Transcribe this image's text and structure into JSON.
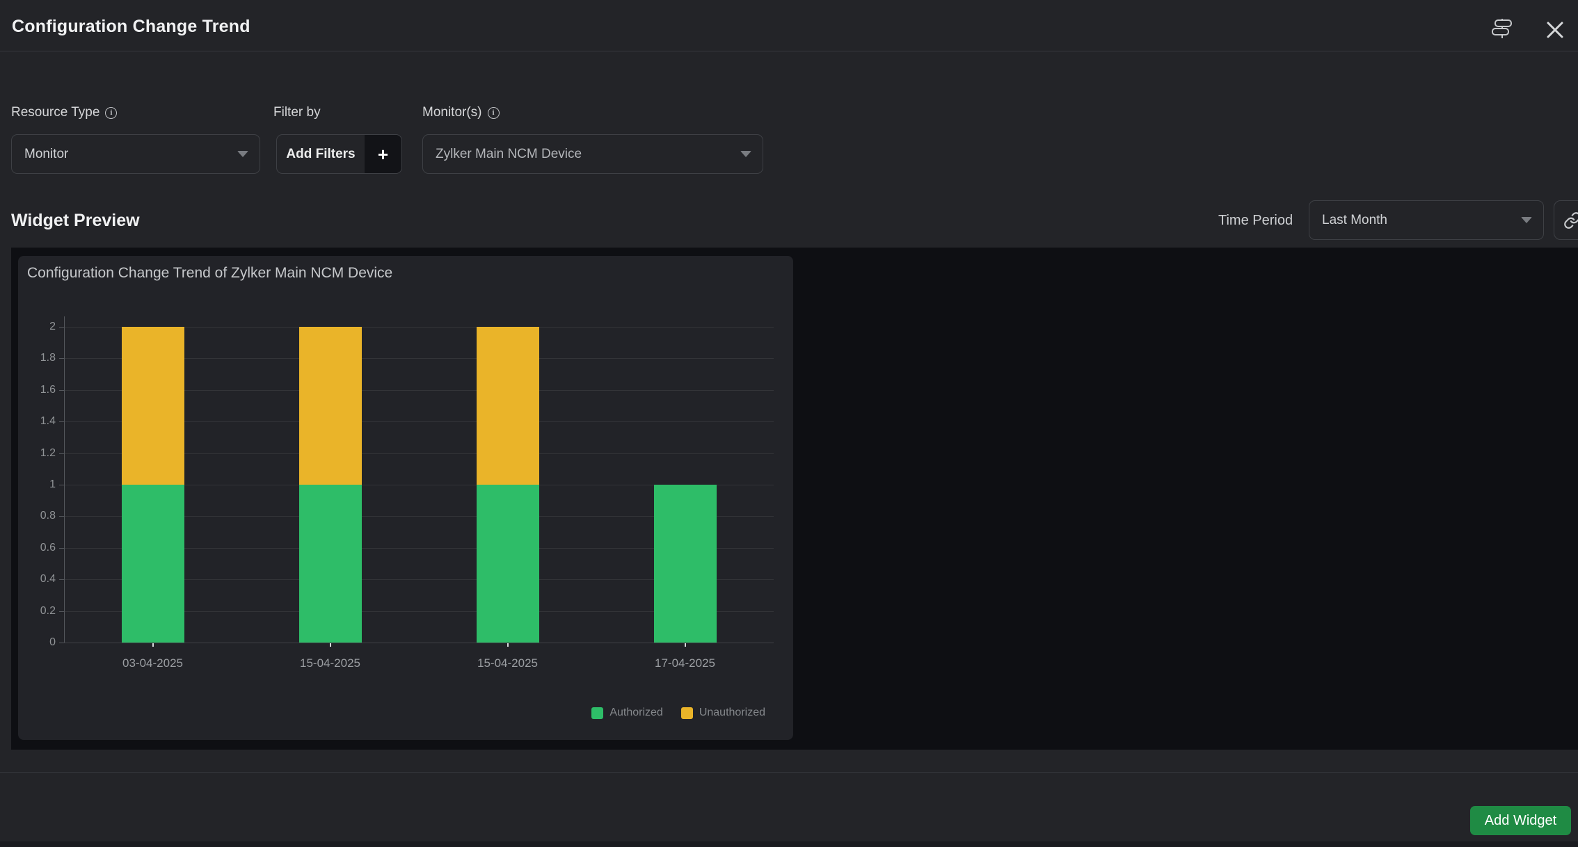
{
  "header": {
    "title": "Configuration Change Trend",
    "icons": [
      "signpost-icon",
      "close-icon"
    ]
  },
  "filters": {
    "resource_type": {
      "label": "Resource Type",
      "value": "Monitor"
    },
    "filter_by": {
      "label": "Filter by",
      "button_label": "Add Filters",
      "plus_label": "+"
    },
    "monitors": {
      "label": "Monitor(s)",
      "value": "Zylker Main NCM Device"
    }
  },
  "preview": {
    "heading": "Widget Preview",
    "time_period": {
      "label": "Time Period",
      "value": "Last Month"
    }
  },
  "chart_data": {
    "type": "bar",
    "stacked": true,
    "title": "Configuration Change Trend of Zylker Main NCM Device",
    "categories": [
      "03-04-2025",
      "15-04-2025",
      "15-04-2025",
      "17-04-2025"
    ],
    "series": [
      {
        "name": "Authorized",
        "color": "#2ebd68",
        "values": [
          1,
          1,
          1,
          1
        ]
      },
      {
        "name": "Unauthorized",
        "color": "#eab429",
        "values": [
          1,
          1,
          1,
          0
        ]
      }
    ],
    "xlabel": "",
    "ylabel": "",
    "ylim": [
      0,
      2
    ],
    "ytick_step": 0.2,
    "grid": true,
    "legend_position": "bottom-right"
  },
  "footer": {
    "add_widget_label": "Add Widget"
  },
  "colors": {
    "background": "#232428",
    "preview_background": "#0e0f13",
    "card_background": "#222328",
    "authorized_green": "#2ebd68",
    "unauthorized_yellow": "#eab429",
    "add_widget_green": "#1f8b44"
  }
}
